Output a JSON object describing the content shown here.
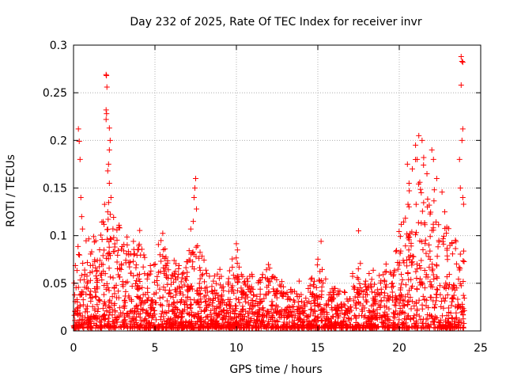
{
  "chart_data": {
    "type": "scatter",
    "title": "Day 232 of 2025, Rate Of TEC Index for receiver invr",
    "xlabel": "GPS time / hours",
    "ylabel": "ROTI / TECUs",
    "xlim": [
      0,
      25
    ],
    "ylim": [
      0,
      0.3
    ],
    "xticks": [
      0,
      5,
      10,
      15,
      20,
      25
    ],
    "yticks": [
      0,
      0.05,
      0.1,
      0.15,
      0.2,
      0.25,
      0.3
    ],
    "xtick_labels": [
      "0",
      "5",
      "10",
      "15",
      "20",
      "25"
    ],
    "ytick_labels": [
      "0",
      "0.05",
      "0.1",
      "0.15",
      "0.2",
      "0.25",
      "0.3"
    ],
    "grid": true,
    "marker": "plus",
    "color": "#ff0000",
    "series": [
      {
        "name": "ROTI",
        "envelope": [
          [
            0,
            0.07
          ],
          [
            0.3,
            0.09
          ],
          [
            0.5,
            0.07
          ],
          [
            1.0,
            0.09
          ],
          [
            1.5,
            0.08
          ],
          [
            2.0,
            0.13
          ],
          [
            2.5,
            0.12
          ],
          [
            3.0,
            0.1
          ],
          [
            3.5,
            0.08
          ],
          [
            4.0,
            0.09
          ],
          [
            4.5,
            0.06
          ],
          [
            5.0,
            0.07
          ],
          [
            5.5,
            0.09
          ],
          [
            6.0,
            0.06
          ],
          [
            6.5,
            0.06
          ],
          [
            7.0,
            0.07
          ],
          [
            7.5,
            0.1
          ],
          [
            8.0,
            0.06
          ],
          [
            8.5,
            0.05
          ],
          [
            9.0,
            0.05
          ],
          [
            9.5,
            0.05
          ],
          [
            10.0,
            0.08
          ],
          [
            10.5,
            0.05
          ],
          [
            11.0,
            0.05
          ],
          [
            11.5,
            0.05
          ],
          [
            12.0,
            0.06
          ],
          [
            12.5,
            0.05
          ],
          [
            13.0,
            0.04
          ],
          [
            13.5,
            0.04
          ],
          [
            14.0,
            0.04
          ],
          [
            14.5,
            0.04
          ],
          [
            15.0,
            0.06
          ],
          [
            15.5,
            0.04
          ],
          [
            16.0,
            0.04
          ],
          [
            16.5,
            0.04
          ],
          [
            17.0,
            0.04
          ],
          [
            17.5,
            0.07
          ],
          [
            18.0,
            0.05
          ],
          [
            18.5,
            0.05
          ],
          [
            19.0,
            0.05
          ],
          [
            19.5,
            0.06
          ],
          [
            20.0,
            0.1
          ],
          [
            20.5,
            0.13
          ],
          [
            21.0,
            0.15
          ],
          [
            21.5,
            0.14
          ],
          [
            22.0,
            0.13
          ],
          [
            22.5,
            0.12
          ],
          [
            23.0,
            0.1
          ],
          [
            23.5,
            0.09
          ],
          [
            24.0,
            0.07
          ]
        ],
        "spikes": [
          {
            "x": 0.3,
            "y": 0.212
          },
          {
            "x": 0.35,
            "y": 0.199
          },
          {
            "x": 0.4,
            "y": 0.18
          },
          {
            "x": 0.45,
            "y": 0.14
          },
          {
            "x": 0.5,
            "y": 0.12
          },
          {
            "x": 0.55,
            "y": 0.107
          },
          {
            "x": 2.0,
            "y": 0.269
          },
          {
            "x": 2.02,
            "y": 0.268
          },
          {
            "x": 2.05,
            "y": 0.256
          },
          {
            "x": 2.0,
            "y": 0.232
          },
          {
            "x": 2.03,
            "y": 0.228
          },
          {
            "x": 2.0,
            "y": 0.222
          },
          {
            "x": 2.2,
            "y": 0.213
          },
          {
            "x": 2.25,
            "y": 0.2
          },
          {
            "x": 2.2,
            "y": 0.19
          },
          {
            "x": 2.15,
            "y": 0.175
          },
          {
            "x": 2.1,
            "y": 0.168
          },
          {
            "x": 2.2,
            "y": 0.155
          },
          {
            "x": 2.3,
            "y": 0.14
          },
          {
            "x": 2.1,
            "y": 0.125
          },
          {
            "x": 7.5,
            "y": 0.16
          },
          {
            "x": 7.45,
            "y": 0.15
          },
          {
            "x": 7.4,
            "y": 0.14
          },
          {
            "x": 7.55,
            "y": 0.128
          },
          {
            "x": 7.35,
            "y": 0.115
          },
          {
            "x": 7.2,
            "y": 0.107
          },
          {
            "x": 17.5,
            "y": 0.105
          },
          {
            "x": 15.2,
            "y": 0.094
          },
          {
            "x": 21.2,
            "y": 0.205
          },
          {
            "x": 21.4,
            "y": 0.2
          },
          {
            "x": 21.0,
            "y": 0.195
          },
          {
            "x": 21.5,
            "y": 0.182
          },
          {
            "x": 21.1,
            "y": 0.18
          },
          {
            "x": 22.0,
            "y": 0.19
          },
          {
            "x": 22.1,
            "y": 0.18
          },
          {
            "x": 20.5,
            "y": 0.175
          },
          {
            "x": 20.8,
            "y": 0.17
          },
          {
            "x": 21.7,
            "y": 0.165
          },
          {
            "x": 20.6,
            "y": 0.155
          },
          {
            "x": 22.3,
            "y": 0.16
          },
          {
            "x": 23.8,
            "y": 0.288
          },
          {
            "x": 23.85,
            "y": 0.283
          },
          {
            "x": 23.9,
            "y": 0.282
          },
          {
            "x": 23.8,
            "y": 0.258
          },
          {
            "x": 23.9,
            "y": 0.212
          },
          {
            "x": 23.85,
            "y": 0.2
          },
          {
            "x": 23.7,
            "y": 0.18
          },
          {
            "x": 23.75,
            "y": 0.15
          },
          {
            "x": 23.9,
            "y": 0.14
          },
          {
            "x": 23.95,
            "y": 0.133
          }
        ]
      }
    ]
  }
}
